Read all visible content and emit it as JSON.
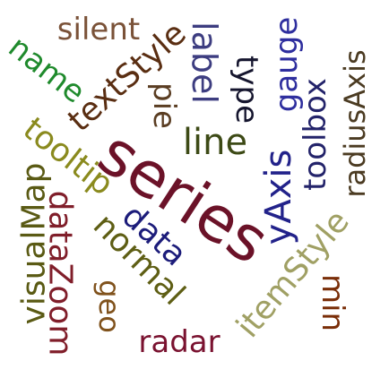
{
  "chart_data": {
    "type": "wordcloud",
    "words": [
      {
        "text": "series",
        "color": "#6b1228"
      },
      {
        "text": "silent",
        "color": "#7a5238"
      },
      {
        "text": "name",
        "color": "#1f8a2c"
      },
      {
        "text": "textStyle",
        "color": "#5a2e12"
      },
      {
        "text": "label",
        "color": "#3d3d80"
      },
      {
        "text": "type",
        "color": "#15152e"
      },
      {
        "text": "gauge",
        "color": "#2e2e9e"
      },
      {
        "text": "radiusAxis",
        "color": "#4b3b22"
      },
      {
        "text": "pie",
        "color": "#5a3d22"
      },
      {
        "text": "line",
        "color": "#3d4a16"
      },
      {
        "text": "toolbox",
        "color": "#23236a"
      },
      {
        "text": "tooltip",
        "color": "#8a8a1e"
      },
      {
        "text": "yAxis",
        "color": "#22228a"
      },
      {
        "text": "visualMap",
        "color": "#5a5a14"
      },
      {
        "text": "dataZoom",
        "color": "#801e2a"
      },
      {
        "text": "data",
        "color": "#1c1c7a"
      },
      {
        "text": "normal",
        "color": "#5e5e14"
      },
      {
        "text": "geo",
        "color": "#80521c"
      },
      {
        "text": "itemStyle",
        "color": "#a0a064"
      },
      {
        "text": "min",
        "color": "#7a2e08"
      },
      {
        "text": "radar",
        "color": "#7a1230"
      }
    ]
  }
}
